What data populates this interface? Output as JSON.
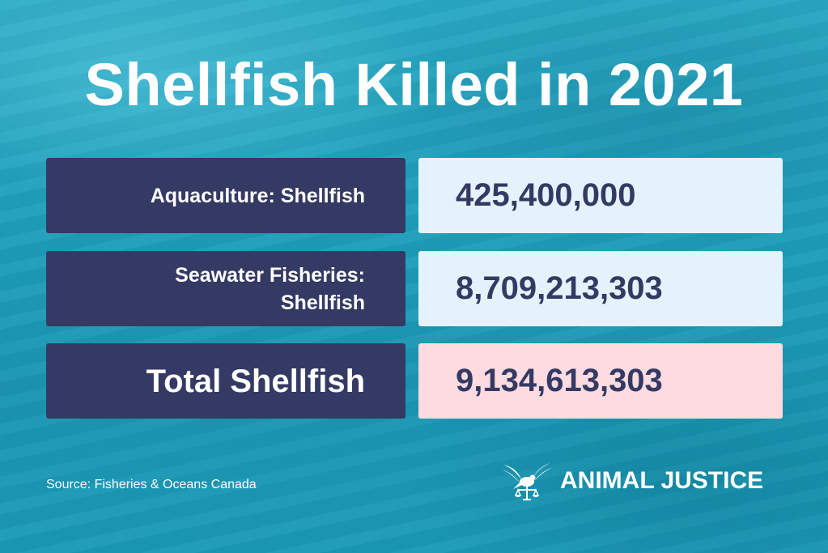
{
  "title": "Shellfish Killed in 2021",
  "rows": [
    {
      "label": "Aquaculture: Shellfish",
      "value": "425,400,000"
    },
    {
      "label_line1": "Seawater Fisheries:",
      "label_line2": "Shellfish",
      "value": "8,709,213,303"
    },
    {
      "label": "Total Shellfish",
      "value": "9,134,613,303"
    }
  ],
  "source": "Source: Fisheries & Oceans Canada",
  "brand": {
    "name": "ANIMAL JUSTICE",
    "logo_icon": "dove-scales-icon"
  },
  "colors": {
    "label_bg": "#343a64",
    "value_bg": "#e4f3fb",
    "total_value_bg": "#fddbe0",
    "background": "#1f9fbb"
  }
}
